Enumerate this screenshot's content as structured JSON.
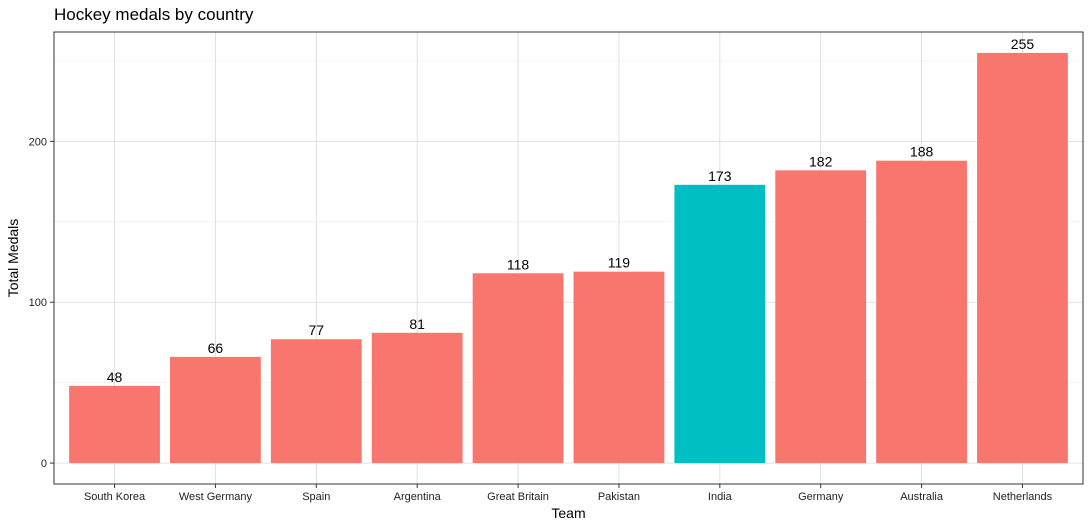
{
  "chart_data": {
    "type": "bar",
    "title": "Hockey medals by country",
    "xlabel": "Team",
    "ylabel": "Total Medals",
    "categories": [
      "South Korea",
      "West Germany",
      "Spain",
      "Argentina",
      "Great Britain",
      "Pakistan",
      "India",
      "Germany",
      "Australia",
      "Netherlands"
    ],
    "values": [
      48,
      66,
      77,
      81,
      118,
      119,
      173,
      182,
      188,
      255
    ],
    "highlight": "India",
    "colors": {
      "default": "#F8766D",
      "highlight": "#00BFC4"
    },
    "ylim": [
      -13,
      268
    ],
    "yticks": [
      0,
      100,
      200
    ],
    "grid": true,
    "legend": "none"
  }
}
